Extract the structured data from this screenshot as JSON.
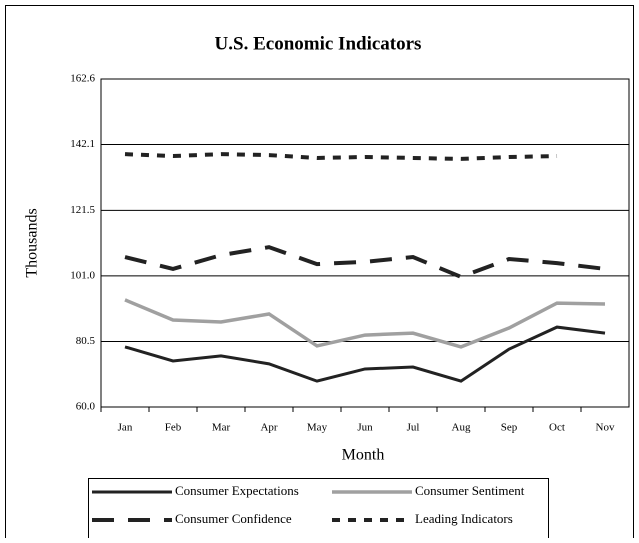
{
  "chart_data": {
    "type": "line",
    "title": "U.S. Economic Indicators",
    "xlabel": "Month",
    "ylabel": "Thousands",
    "categories": [
      "Jan",
      "Feb",
      "Mar",
      "Apr",
      "May",
      "Jun",
      "Jul",
      "Aug",
      "Sep",
      "Oct",
      "Nov"
    ],
    "series": [
      {
        "name": "Consumer Expectations",
        "color": "#222222",
        "values": [
          78.8,
          74.4,
          76.0,
          73.5,
          68.1,
          71.9,
          72.5,
          68.1,
          78.1,
          85.0,
          83.1
        ]
      },
      {
        "name": "Consumer Sentiment",
        "color": "#a0a0a0",
        "values": [
          93.5,
          87.2,
          86.6,
          89.1,
          79.1,
          82.5,
          83.1,
          78.8,
          84.7,
          92.5,
          92.2
        ]
      },
      {
        "name": "Consumer Confidence",
        "color": "#222222",
        "values": [
          106.9,
          103.2,
          107.5,
          110.0,
          104.7,
          105.4,
          106.9,
          100.7,
          106.3,
          105.0,
          103.2
        ]
      },
      {
        "name": "Leading Indicators",
        "color": "#222222",
        "values": [
          139.1,
          138.5,
          139.1,
          138.8,
          137.9,
          138.2,
          137.9,
          137.6,
          138.2,
          138.5,
          null
        ]
      }
    ],
    "ylim": [
      60.0,
      162.6
    ],
    "yticks": [
      {
        "value": 60.0,
        "label": "60.0"
      },
      80.5,
      {
        "value": 101.0,
        "label": "101.0"
      },
      121.5,
      142.1,
      162.6
    ],
    "grid": true
  }
}
